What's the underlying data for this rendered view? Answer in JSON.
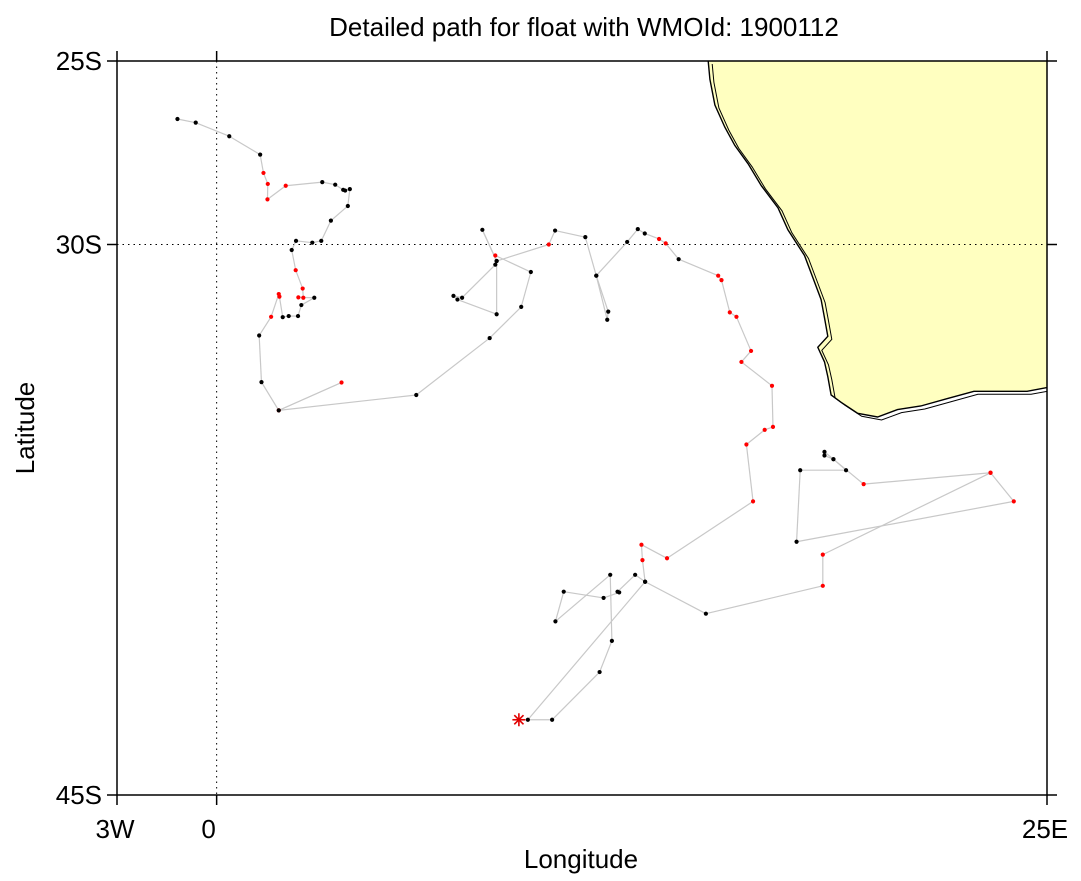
{
  "title": "Detailed path for float with WMOId: 1900112",
  "xlabel": "Longitude",
  "ylabel": "Latitude",
  "x_ticks": [
    {
      "value": -3,
      "label": "3W"
    },
    {
      "value": 0,
      "label": "0"
    },
    {
      "value": 25,
      "label": "25E"
    }
  ],
  "y_ticks": [
    {
      "value": -25,
      "label": "25S"
    },
    {
      "value": -30,
      "label": "30S"
    },
    {
      "value": -45,
      "label": "45S"
    }
  ],
  "colors": {
    "land": "#ffffc0",
    "coast": "#000000",
    "track": "#c8c8c8",
    "point_normal": "#000000",
    "point_flagged": "#ff0000",
    "start_marker": "#e00000"
  },
  "chart_data": {
    "type": "scatter",
    "title": "Detailed path for float with WMOId: 1900112",
    "xlabel": "Longitude",
    "ylabel": "Latitude",
    "xlim": [
      -3,
      25
    ],
    "ylim": [
      -45,
      -25
    ],
    "grid": "dotted lines at 0 longitude and 30S latitude",
    "start_marker": "asterisk",
    "land_region": "southern Africa west coast",
    "coastline": [
      [
        14.8,
        -25.0
      ],
      [
        14.85,
        -25.5
      ],
      [
        15.0,
        -26.2
      ],
      [
        15.3,
        -26.8
      ],
      [
        15.6,
        -27.3
      ],
      [
        16.0,
        -27.8
      ],
      [
        16.4,
        -28.4
      ],
      [
        16.9,
        -29.0
      ],
      [
        17.2,
        -29.6
      ],
      [
        17.7,
        -30.3
      ],
      [
        17.95,
        -30.9
      ],
      [
        18.2,
        -31.5
      ],
      [
        18.3,
        -32.0
      ],
      [
        18.4,
        -32.5
      ],
      [
        18.1,
        -32.8
      ],
      [
        18.3,
        -33.2
      ],
      [
        18.4,
        -33.6
      ],
      [
        18.5,
        -34.1
      ],
      [
        18.8,
        -34.3
      ],
      [
        19.3,
        -34.6
      ],
      [
        19.9,
        -34.7
      ],
      [
        20.5,
        -34.5
      ],
      [
        21.2,
        -34.4
      ],
      [
        22.0,
        -34.2
      ],
      [
        22.8,
        -34.0
      ],
      [
        23.7,
        -34.0
      ],
      [
        24.4,
        -34.0
      ],
      [
        25.0,
        -33.9
      ],
      [
        25.0,
        -25.0
      ]
    ],
    "track": [
      {
        "lon": -1.18,
        "lat": -26.58,
        "flag": false
      },
      {
        "lon": -0.63,
        "lat": -26.68,
        "flag": false
      },
      {
        "lon": 0.38,
        "lat": -27.05,
        "flag": false
      },
      {
        "lon": 1.31,
        "lat": -27.55,
        "flag": false
      },
      {
        "lon": 1.41,
        "lat": -28.05,
        "flag": true
      },
      {
        "lon": 1.54,
        "lat": -28.35,
        "flag": true
      },
      {
        "lon": 1.53,
        "lat": -28.77,
        "flag": true
      },
      {
        "lon": 2.08,
        "lat": -28.4,
        "flag": true
      },
      {
        "lon": 3.18,
        "lat": -28.3,
        "flag": false
      },
      {
        "lon": 3.57,
        "lat": -28.37,
        "flag": false
      },
      {
        "lon": 3.81,
        "lat": -28.51,
        "flag": false
      },
      {
        "lon": 3.87,
        "lat": -28.53,
        "flag": false
      },
      {
        "lon": 4.01,
        "lat": -28.49,
        "flag": false
      },
      {
        "lon": 3.95,
        "lat": -28.95,
        "flag": false
      },
      {
        "lon": 3.44,
        "lat": -29.35,
        "flag": false
      },
      {
        "lon": 3.15,
        "lat": -29.9,
        "flag": false
      },
      {
        "lon": 2.88,
        "lat": -29.95,
        "flag": false
      },
      {
        "lon": 2.39,
        "lat": -29.9,
        "flag": false
      },
      {
        "lon": 2.26,
        "lat": -30.15,
        "flag": false
      },
      {
        "lon": 2.38,
        "lat": -30.7,
        "flag": true
      },
      {
        "lon": 2.59,
        "lat": -31.2,
        "flag": true
      },
      {
        "lon": 2.61,
        "lat": -31.45,
        "flag": true
      },
      {
        "lon": 2.46,
        "lat": -31.44,
        "flag": true
      },
      {
        "lon": 2.94,
        "lat": -31.45,
        "flag": false
      },
      {
        "lon": 2.55,
        "lat": -31.65,
        "flag": false
      },
      {
        "lon": 2.45,
        "lat": -31.95,
        "flag": false
      },
      {
        "lon": 2.17,
        "lat": -31.95,
        "flag": false
      },
      {
        "lon": 1.99,
        "lat": -31.98,
        "flag": false
      },
      {
        "lon": 1.89,
        "lat": -31.42,
        "flag": true
      },
      {
        "lon": 1.87,
        "lat": -31.35,
        "flag": true
      },
      {
        "lon": 1.64,
        "lat": -31.97,
        "flag": true
      },
      {
        "lon": 1.28,
        "lat": -32.48,
        "flag": false
      },
      {
        "lon": 1.35,
        "lat": -33.75,
        "flag": false
      },
      {
        "lon": 1.87,
        "lat": -34.52,
        "flag": true
      },
      {
        "lon": 3.76,
        "lat": -33.76,
        "flag": true
      },
      {
        "lon": 1.87,
        "lat": -34.52,
        "flag": false
      },
      {
        "lon": 6.01,
        "lat": -34.1,
        "flag": false
      },
      {
        "lon": 8.22,
        "lat": -32.55,
        "flag": false
      },
      {
        "lon": 9.17,
        "lat": -31.7,
        "flag": false
      },
      {
        "lon": 9.46,
        "lat": -30.75,
        "flag": false
      },
      {
        "lon": 8.39,
        "lat": -30.3,
        "flag": true
      },
      {
        "lon": 8.39,
        "lat": -30.55,
        "flag": false
      },
      {
        "lon": 7.39,
        "lat": -31.45,
        "flag": false
      },
      {
        "lon": 7.13,
        "lat": -31.4,
        "flag": false
      },
      {
        "lon": 7.25,
        "lat": -31.5,
        "flag": false
      },
      {
        "lon": 8.43,
        "lat": -31.9,
        "flag": false
      },
      {
        "lon": 8.43,
        "lat": -30.45,
        "flag": false
      },
      {
        "lon": 8.0,
        "lat": -29.6,
        "flag": false
      },
      {
        "lon": 8.43,
        "lat": -30.45,
        "flag": false
      },
      {
        "lon": 10.0,
        "lat": -30.0,
        "flag": true
      },
      {
        "lon": 10.19,
        "lat": -29.62,
        "flag": false
      },
      {
        "lon": 11.1,
        "lat": -29.8,
        "flag": false
      },
      {
        "lon": 11.43,
        "lat": -30.85,
        "flag": false
      },
      {
        "lon": 11.79,
        "lat": -31.83,
        "flag": false
      },
      {
        "lon": 11.76,
        "lat": -32.05,
        "flag": false
      },
      {
        "lon": 11.43,
        "lat": -30.85,
        "flag": false
      },
      {
        "lon": 12.36,
        "lat": -29.93,
        "flag": false
      },
      {
        "lon": 12.68,
        "lat": -29.58,
        "flag": false
      },
      {
        "lon": 12.89,
        "lat": -29.7,
        "flag": false
      },
      {
        "lon": 13.32,
        "lat": -29.85,
        "flag": true
      },
      {
        "lon": 13.52,
        "lat": -29.97,
        "flag": true
      },
      {
        "lon": 13.91,
        "lat": -30.4,
        "flag": false
      },
      {
        "lon": 15.1,
        "lat": -30.85,
        "flag": true
      },
      {
        "lon": 15.2,
        "lat": -30.97,
        "flag": true
      },
      {
        "lon": 15.45,
        "lat": -31.85,
        "flag": true
      },
      {
        "lon": 15.65,
        "lat": -31.97,
        "flag": true
      },
      {
        "lon": 16.09,
        "lat": -32.9,
        "flag": true
      },
      {
        "lon": 15.8,
        "lat": -33.2,
        "flag": true
      },
      {
        "lon": 16.72,
        "lat": -33.85,
        "flag": true
      },
      {
        "lon": 16.75,
        "lat": -34.97,
        "flag": true
      },
      {
        "lon": 16.5,
        "lat": -35.05,
        "flag": true
      },
      {
        "lon": 15.95,
        "lat": -35.45,
        "flag": true
      },
      {
        "lon": 16.15,
        "lat": -37.0,
        "flag": true
      },
      {
        "lon": 13.56,
        "lat": -38.55,
        "flag": true
      },
      {
        "lon": 12.79,
        "lat": -38.18,
        "flag": true
      },
      {
        "lon": 12.82,
        "lat": -38.6,
        "flag": true
      },
      {
        "lon": 12.9,
        "lat": -39.19,
        "flag": false
      },
      {
        "lon": 12.6,
        "lat": -39.0,
        "flag": false
      },
      {
        "lon": 12.07,
        "lat": -39.46,
        "flag": false
      },
      {
        "lon": 12.12,
        "lat": -39.48,
        "flag": false
      },
      {
        "lon": 11.65,
        "lat": -39.63,
        "flag": false
      },
      {
        "lon": 10.45,
        "lat": -39.46,
        "flag": false
      },
      {
        "lon": 10.2,
        "lat": -40.27,
        "flag": false
      },
      {
        "lon": 11.85,
        "lat": -39.0,
        "flag": false
      },
      {
        "lon": 11.9,
        "lat": -40.8,
        "flag": false
      },
      {
        "lon": 11.53,
        "lat": -41.65,
        "flag": false
      },
      {
        "lon": 10.1,
        "lat": -42.95,
        "flag": false
      },
      {
        "lon": 9.37,
        "lat": -42.95,
        "flag": false
      },
      {
        "lon": 12.9,
        "lat": -39.19,
        "flag": false
      },
      {
        "lon": 14.73,
        "lat": -40.06,
        "flag": false
      },
      {
        "lon": 18.25,
        "lat": -39.3,
        "flag": true
      },
      {
        "lon": 18.25,
        "lat": -38.45,
        "flag": true
      },
      {
        "lon": 23.3,
        "lat": -36.22,
        "flag": true
      },
      {
        "lon": 24.0,
        "lat": -37.0,
        "flag": true
      },
      {
        "lon": 17.46,
        "lat": -38.1,
        "flag": false
      },
      {
        "lon": 17.57,
        "lat": -36.15,
        "flag": false
      },
      {
        "lon": 18.95,
        "lat": -36.15,
        "flag": false
      },
      {
        "lon": 18.57,
        "lat": -35.85,
        "flag": false
      },
      {
        "lon": 18.3,
        "lat": -35.75,
        "flag": false
      },
      {
        "lon": 18.3,
        "lat": -35.65,
        "flag": false
      },
      {
        "lon": 18.57,
        "lat": -35.85,
        "flag": false
      },
      {
        "lon": 19.48,
        "lat": -36.53,
        "flag": true
      },
      {
        "lon": 23.3,
        "lat": -36.22,
        "flag": true
      }
    ],
    "start": {
      "lon": 9.1,
      "lat": -42.95
    }
  }
}
